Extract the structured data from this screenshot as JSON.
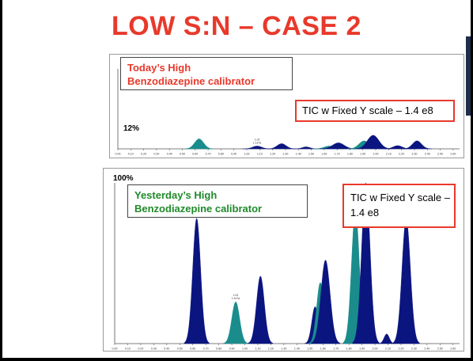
{
  "slide": {
    "title": "LOW S:N – CASE 2"
  },
  "top_panel": {
    "label_line1": "Today’s High",
    "label_line2": "Benzodiazepine calibrator",
    "label_color": "#e8392b",
    "tic_label": "TIC w Fixed Y scale – 1.4 e8",
    "percent": "12%"
  },
  "bottom_panel": {
    "label_line1": "Yesterday’s High",
    "label_line2": "Benzodiazepine calibrator",
    "label_color": "#1f8a2a",
    "tic_line1": "TIC w Fixed Y",
    "tic_line2": "scale – 1.4 e8",
    "percent": "100%"
  },
  "colors": {
    "title": "#e8392b",
    "navy_peak": "#0b1580",
    "teal_peak": "#1a8c8c",
    "box_border": "#e8392b"
  },
  "chart_data": [
    {
      "type": "area",
      "name": "top",
      "xlabel": "",
      "ylabel": "",
      "x_ticks": [
        "0.00",
        "0.10",
        "0.20",
        "0.30",
        "0.40",
        "0.50",
        "0.60",
        "0.70",
        "0.80",
        "0.90",
        "1.00",
        "1.10",
        "1.20",
        "1.30",
        "1.40",
        "1.50",
        "1.60",
        "1.70",
        "1.80",
        "1.90",
        "2.00",
        "2.10",
        "2.20",
        "2.30",
        "2.40",
        "2.50",
        "2.60"
      ],
      "xlim": [
        0.0,
        2.65
      ],
      "ylim": [
        0,
        100
      ],
      "peaks": [
        {
          "x": 0.63,
          "y": 12.5,
          "w": 0.035,
          "color": "teal"
        },
        {
          "x": 1.08,
          "y": 3.5,
          "w": 0.035,
          "color": "navy"
        },
        {
          "x": 1.27,
          "y": 6.5,
          "w": 0.035,
          "color": "navy"
        },
        {
          "x": 1.46,
          "y": 2.5,
          "w": 0.03,
          "color": "navy"
        },
        {
          "x": 1.64,
          "y": 3.5,
          "w": 0.04,
          "color": "teal"
        },
        {
          "x": 1.71,
          "y": 7.5,
          "w": 0.045,
          "color": "navy"
        },
        {
          "x": 1.91,
          "y": 10.0,
          "w": 0.04,
          "color": "teal"
        },
        {
          "x": 1.98,
          "y": 17.0,
          "w": 0.045,
          "color": "navy"
        },
        {
          "x": 2.17,
          "y": 4.0,
          "w": 0.035,
          "color": "navy"
        },
        {
          "x": 2.32,
          "y": 10.0,
          "w": 0.035,
          "color": "navy"
        }
      ],
      "peak_labels": [
        {
          "x": 1.08,
          "text": "1.02\n1.1e7a"
        }
      ]
    },
    {
      "type": "area",
      "name": "bottom",
      "xlabel": "",
      "ylabel": "",
      "x_ticks": [
        "0.00",
        "0.10",
        "0.20",
        "0.30",
        "0.40",
        "0.50",
        "0.60",
        "0.70",
        "0.80",
        "0.90",
        "1.00",
        "1.10",
        "1.20",
        "1.30",
        "1.40",
        "1.50",
        "1.60",
        "1.70",
        "1.80",
        "1.90",
        "2.00",
        "2.10",
        "2.20",
        "2.30",
        "2.40",
        "2.50",
        "2.60"
      ],
      "xlim": [
        0.0,
        2.65
      ],
      "ylim": [
        0,
        100
      ],
      "peaks": [
        {
          "x": 0.63,
          "y": 78,
          "w": 0.03,
          "color": "navy"
        },
        {
          "x": 0.93,
          "y": 26,
          "w": 0.03,
          "color": "teal"
        },
        {
          "x": 1.12,
          "y": 42,
          "w": 0.03,
          "color": "navy"
        },
        {
          "x": 1.54,
          "y": 23,
          "w": 0.025,
          "color": "navy"
        },
        {
          "x": 1.58,
          "y": 38,
          "w": 0.028,
          "color": "teal"
        },
        {
          "x": 1.62,
          "y": 52,
          "w": 0.035,
          "color": "navy"
        },
        {
          "x": 1.85,
          "y": 83,
          "w": 0.03,
          "color": "teal"
        },
        {
          "x": 1.93,
          "y": 100,
          "w": 0.032,
          "color": "navy"
        },
        {
          "x": 2.09,
          "y": 6,
          "w": 0.02,
          "color": "navy"
        },
        {
          "x": 2.24,
          "y": 78,
          "w": 0.032,
          "color": "navy"
        }
      ],
      "peak_labels": [
        {
          "x": 0.93,
          "text": "1.02\n1.1e7a"
        }
      ]
    }
  ]
}
